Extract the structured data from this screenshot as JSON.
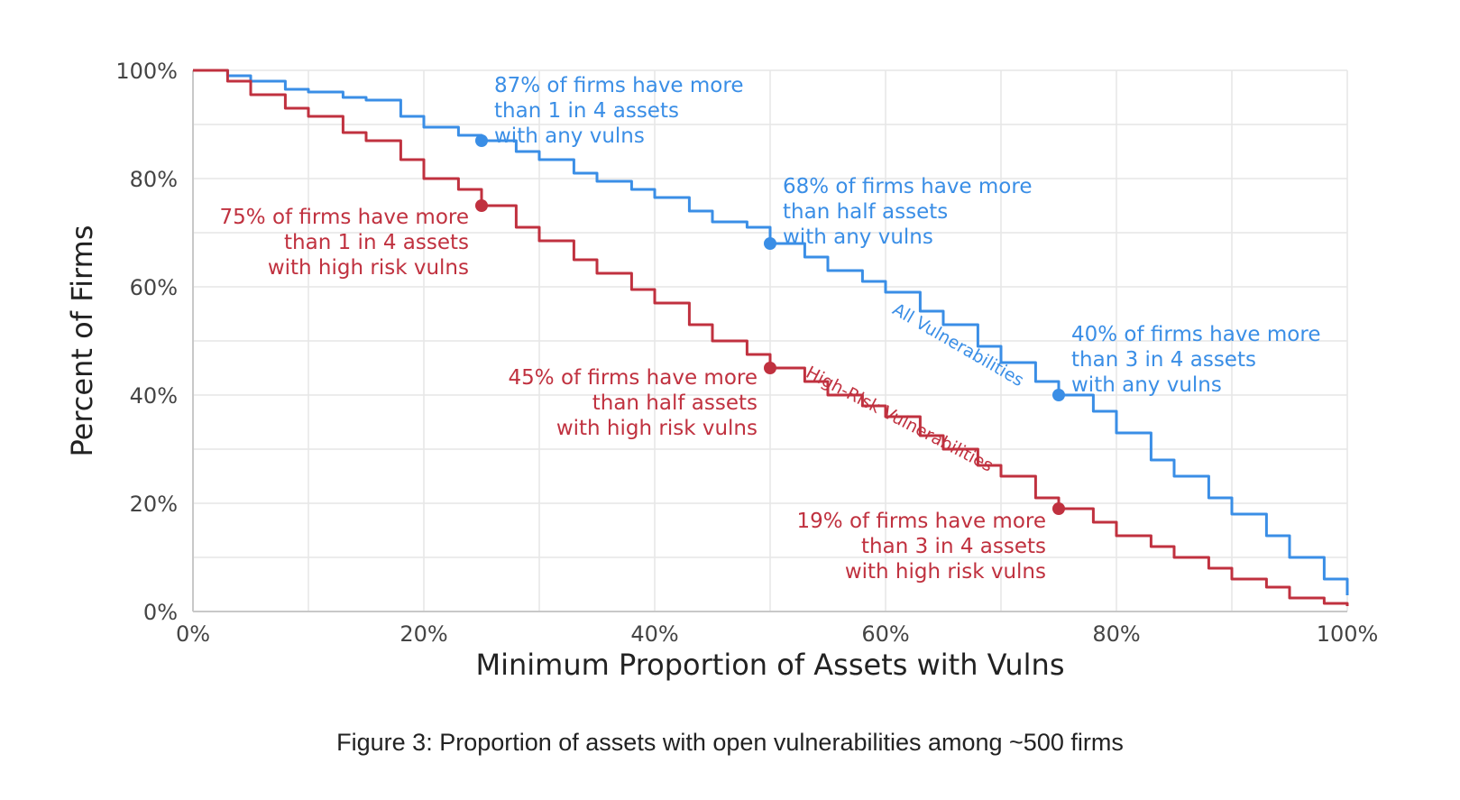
{
  "caption": "Figure 3: Proportion of assets with open vulnerabilities among ~500 firms",
  "chart_data": {
    "type": "line",
    "xlabel": "Minimum Proportion of Assets with Vulns",
    "ylabel": "Percent of Firms",
    "xlim": [
      0,
      100
    ],
    "ylim": [
      0,
      100
    ],
    "x_ticks": [
      "0%",
      "20%",
      "40%",
      "60%",
      "80%",
      "100%"
    ],
    "y_ticks": [
      "0%",
      "20%",
      "40%",
      "60%",
      "80%",
      "100%"
    ],
    "grid": true,
    "colors": {
      "all": "#3a8ee6",
      "high": "#c0313f"
    },
    "series": [
      {
        "name": "All Vulnerabilities",
        "x": [
          0,
          3,
          5,
          8,
          10,
          13,
          15,
          18,
          20,
          23,
          25,
          28,
          30,
          33,
          35,
          38,
          40,
          43,
          45,
          48,
          50,
          53,
          55,
          58,
          60,
          63,
          65,
          68,
          70,
          73,
          75,
          78,
          80,
          83,
          85,
          88,
          90,
          93,
          95,
          98,
          100
        ],
        "y": [
          100,
          99,
          98,
          96.5,
          96,
          95,
          94.5,
          91.5,
          89.5,
          88,
          87,
          85,
          83.5,
          81,
          79.5,
          78,
          76.5,
          74,
          72,
          71,
          68,
          65.5,
          63,
          61,
          59,
          55.5,
          53,
          49,
          46,
          42.5,
          40,
          37,
          33,
          28,
          25,
          21,
          18,
          14,
          10,
          6,
          3
        ]
      },
      {
        "name": "High-Risk Vulnerabilities",
        "x": [
          0,
          3,
          5,
          8,
          10,
          13,
          15,
          18,
          20,
          23,
          25,
          28,
          30,
          33,
          35,
          38,
          40,
          43,
          45,
          48,
          50,
          53,
          55,
          58,
          60,
          63,
          65,
          68,
          70,
          73,
          75,
          78,
          80,
          83,
          85,
          88,
          90,
          93,
          95,
          98,
          100
        ],
        "y": [
          100,
          98,
          95.5,
          93,
          91.5,
          88.5,
          87,
          83.5,
          80,
          78,
          75,
          71,
          68.5,
          65,
          62.5,
          59.5,
          57,
          53,
          50,
          47.5,
          45,
          42.5,
          40,
          38,
          36,
          32.5,
          30,
          27,
          25,
          21,
          19,
          16.5,
          14,
          12,
          10,
          8,
          6,
          4.5,
          2.5,
          1.5,
          1
        ]
      }
    ],
    "highlight_points": [
      {
        "series": "All Vulnerabilities",
        "x": 25,
        "y": 87
      },
      {
        "series": "All Vulnerabilities",
        "x": 50,
        "y": 68
      },
      {
        "series": "All Vulnerabilities",
        "x": 75,
        "y": 40
      },
      {
        "series": "High-Risk Vulnerabilities",
        "x": 25,
        "y": 75
      },
      {
        "series": "High-Risk Vulnerabilities",
        "x": 50,
        "y": 45
      },
      {
        "series": "High-Risk Vulnerabilities",
        "x": 75,
        "y": 19
      }
    ],
    "annotations": [
      {
        "id": "all-25",
        "series": "all",
        "lines": [
          "87% of firms have more",
          "than 1 in 4 assets",
          "with any vulns"
        ]
      },
      {
        "id": "all-50",
        "series": "all",
        "lines": [
          "68% of firms have more",
          "than half assets",
          "with any vulns"
        ]
      },
      {
        "id": "all-75",
        "series": "all",
        "lines": [
          "40% of firms have more",
          "than 3 in 4 assets",
          "with any vulns"
        ]
      },
      {
        "id": "high-25",
        "series": "high",
        "lines": [
          "75% of firms have more",
          "than 1 in 4 assets",
          "with high risk vulns"
        ]
      },
      {
        "id": "high-50",
        "series": "high",
        "lines": [
          "45% of firms have more",
          "than half assets",
          "with high risk vulns"
        ]
      },
      {
        "id": "high-75",
        "series": "high",
        "lines": [
          "19% of firms have more",
          "than 3 in 4 assets",
          "with high risk vulns"
        ]
      }
    ],
    "series_labels": {
      "all": "All Vulnerabilities",
      "high": "High-Risk Vulnerabilities"
    }
  }
}
